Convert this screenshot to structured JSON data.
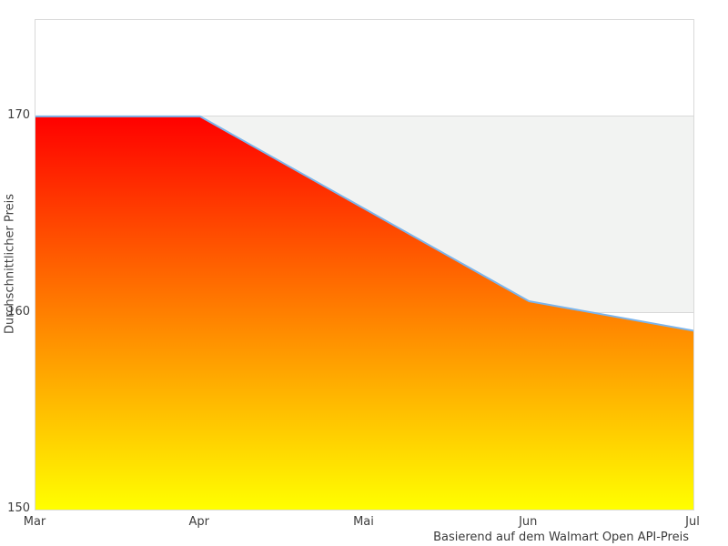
{
  "chart": {
    "y_axis_title": "Durchschnittlicher Preis",
    "caption": "Basierend auf dem Walmart Open API-Preis"
  },
  "chart_data": {
    "type": "area",
    "categories": [
      "Mar",
      "Apr",
      "Mai",
      "Jun",
      "Jul"
    ],
    "values": [
      170,
      170,
      165.3,
      160.6,
      159.1
    ],
    "title": "",
    "xlabel": "",
    "ylabel": "Durchschnittlicher Preis",
    "ylim": [
      150,
      174.9
    ],
    "yticks": [
      150,
      160,
      170
    ],
    "grid": "horizontal-only",
    "legend": "none",
    "band": {
      "from": 160,
      "to": 170,
      "color": "#f2f3f2"
    },
    "gridline_color": "#d9d9d9",
    "line_color": "#7cb5ec",
    "fill_gradient": {
      "top": "#ff0000",
      "bottom": "#ffff00"
    },
    "caption": "Basierend auf dem Walmart Open API-Preis"
  }
}
